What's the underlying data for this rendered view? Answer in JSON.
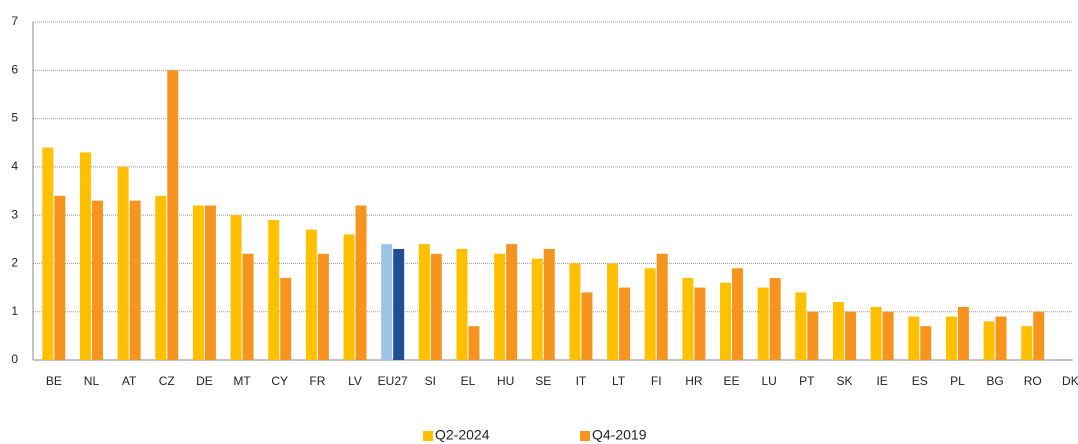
{
  "chart_data": {
    "type": "bar",
    "categories": [
      "BE",
      "NL",
      "AT",
      "CZ",
      "DE",
      "MT",
      "CY",
      "FR",
      "LV",
      "EU27",
      "SI",
      "EL",
      "HU",
      "SE",
      "IT",
      "LT",
      "FI",
      "HR",
      "EE",
      "LU",
      "PT",
      "SK",
      "IE",
      "ES",
      "PL",
      "BG",
      "RO",
      "DK"
    ],
    "series": [
      {
        "name": "Q2-2024",
        "color": "#ffc000",
        "highlight_color": "#9dc3e6",
        "values": [
          4.4,
          4.3,
          4.0,
          3.4,
          3.2,
          3.0,
          2.9,
          2.7,
          2.6,
          2.4,
          2.4,
          2.3,
          2.2,
          2.1,
          2.0,
          2.0,
          1.9,
          1.7,
          1.6,
          1.5,
          1.4,
          1.2,
          1.1,
          0.9,
          0.9,
          0.8,
          0.7,
          null
        ]
      },
      {
        "name": "Q4-2019",
        "color": "#f7941d",
        "highlight_color": "#1f4e96",
        "values": [
          3.4,
          3.3,
          3.3,
          6.0,
          3.2,
          2.2,
          1.7,
          2.2,
          3.2,
          2.3,
          2.2,
          0.7,
          2.4,
          2.3,
          1.4,
          1.5,
          2.2,
          1.5,
          1.9,
          1.7,
          1.0,
          1.0,
          1.0,
          0.7,
          1.1,
          0.9,
          1.0,
          null
        ]
      }
    ],
    "highlight_categories": [
      9
    ],
    "ylim": [
      0,
      7
    ],
    "yticks": [
      0,
      1,
      2,
      3,
      4,
      5,
      6,
      7
    ],
    "grid": true,
    "legend": "bottom"
  }
}
